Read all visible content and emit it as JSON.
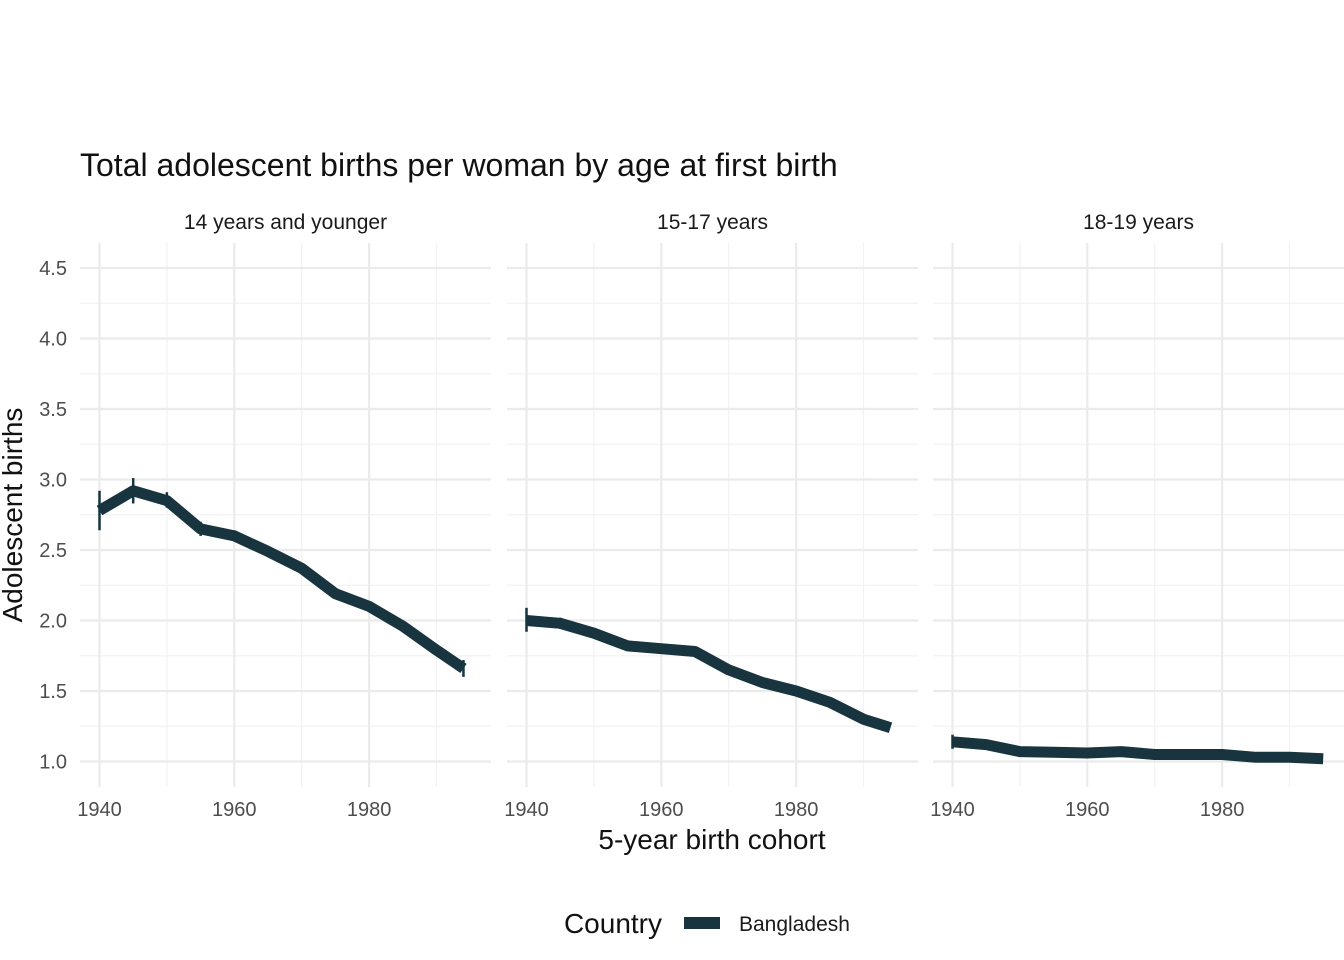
{
  "chart_data": {
    "type": "line",
    "title": "Total adolescent births per woman by age at first birth",
    "xlabel": "5-year birth cohort",
    "ylabel": "Adolescent births",
    "xlim": [
      1940,
      1995
    ],
    "ylim": [
      1.0,
      4.6
    ],
    "x_ticks": [
      "1940",
      "1960",
      "1980"
    ],
    "y_ticks": [
      "1.0",
      "1.5",
      "2.0",
      "2.5",
      "3.0",
      "3.5",
      "4.0",
      "4.5"
    ],
    "series_color": "#17343f",
    "legend": {
      "title": "Country",
      "entries": [
        "Bangladesh"
      ],
      "position": "bottom"
    },
    "panels": [
      {
        "label": "14 years and younger",
        "series": [
          {
            "name": "Bangladesh",
            "x": [
              1940,
              1945,
              1950,
              1955,
              1960,
              1965,
              1970,
              1975,
              1980,
              1985,
              1990,
              1994
            ],
            "values": [
              2.78,
              2.92,
              2.85,
              2.65,
              2.6,
              2.49,
              2.37,
              2.19,
              2.1,
              1.96,
              1.79,
              1.66
            ],
            "ci_x": [
              1940,
              1945,
              1950,
              1955,
              1960,
              1994
            ],
            "ci_low": [
              2.64,
              2.83,
              2.8,
              2.6,
              2.56,
              1.6
            ],
            "ci_high": [
              2.92,
              3.01,
              2.91,
              2.7,
              2.64,
              1.72
            ]
          }
        ]
      },
      {
        "label": "15-17 years",
        "series": [
          {
            "name": "Bangladesh",
            "x": [
              1940,
              1945,
              1950,
              1955,
              1960,
              1965,
              1970,
              1975,
              1980,
              1985,
              1990,
              1994
            ],
            "values": [
              2.0,
              1.98,
              1.91,
              1.82,
              1.8,
              1.78,
              1.65,
              1.56,
              1.5,
              1.42,
              1.3,
              1.24
            ],
            "ci_x": [
              1940,
              1945
            ],
            "ci_low": [
              1.92,
              1.94
            ],
            "ci_high": [
              2.09,
              2.02
            ]
          }
        ]
      },
      {
        "label": "18-19 years",
        "series": [
          {
            "name": "Bangladesh",
            "x": [
              1940,
              1945,
              1950,
              1955,
              1960,
              1965,
              1970,
              1975,
              1980,
              1985,
              1990,
              1995
            ],
            "values": [
              1.14,
              1.12,
              1.07,
              1.065,
              1.06,
              1.07,
              1.05,
              1.05,
              1.05,
              1.03,
              1.03,
              1.02
            ],
            "ci_x": [
              1940
            ],
            "ci_low": [
              1.09
            ],
            "ci_high": [
              1.19
            ]
          }
        ]
      }
    ]
  }
}
